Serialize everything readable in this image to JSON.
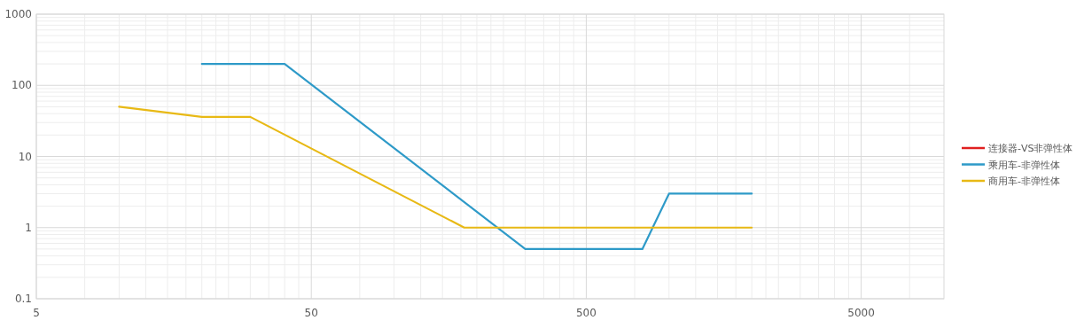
{
  "chart_data": {
    "type": "line",
    "log": "xy",
    "grid": true,
    "legend": "right",
    "xlim": [
      5,
      10000
    ],
    "xticks": [
      5,
      50,
      500,
      5000
    ],
    "ylim": [
      0.1,
      1000
    ],
    "yticks": [
      0.1,
      1,
      10,
      100,
      1000
    ],
    "series": [
      {
        "name": "连接器-VS非弹性体",
        "color": "#e02020"
      },
      {
        "name": "乘用车-非弹性体",
        "color": "#2e9ac8",
        "x": [
          20,
          40,
          300,
          800,
          1000,
          2000
        ],
        "values": [
          200,
          200,
          0.5,
          0.5,
          3,
          3
        ]
      },
      {
        "name": "商用车-非弹性体",
        "color": "#e8b915",
        "x": [
          10,
          20,
          30,
          180,
          2000
        ],
        "values": [
          50,
          36,
          36,
          1,
          1
        ]
      }
    ]
  }
}
